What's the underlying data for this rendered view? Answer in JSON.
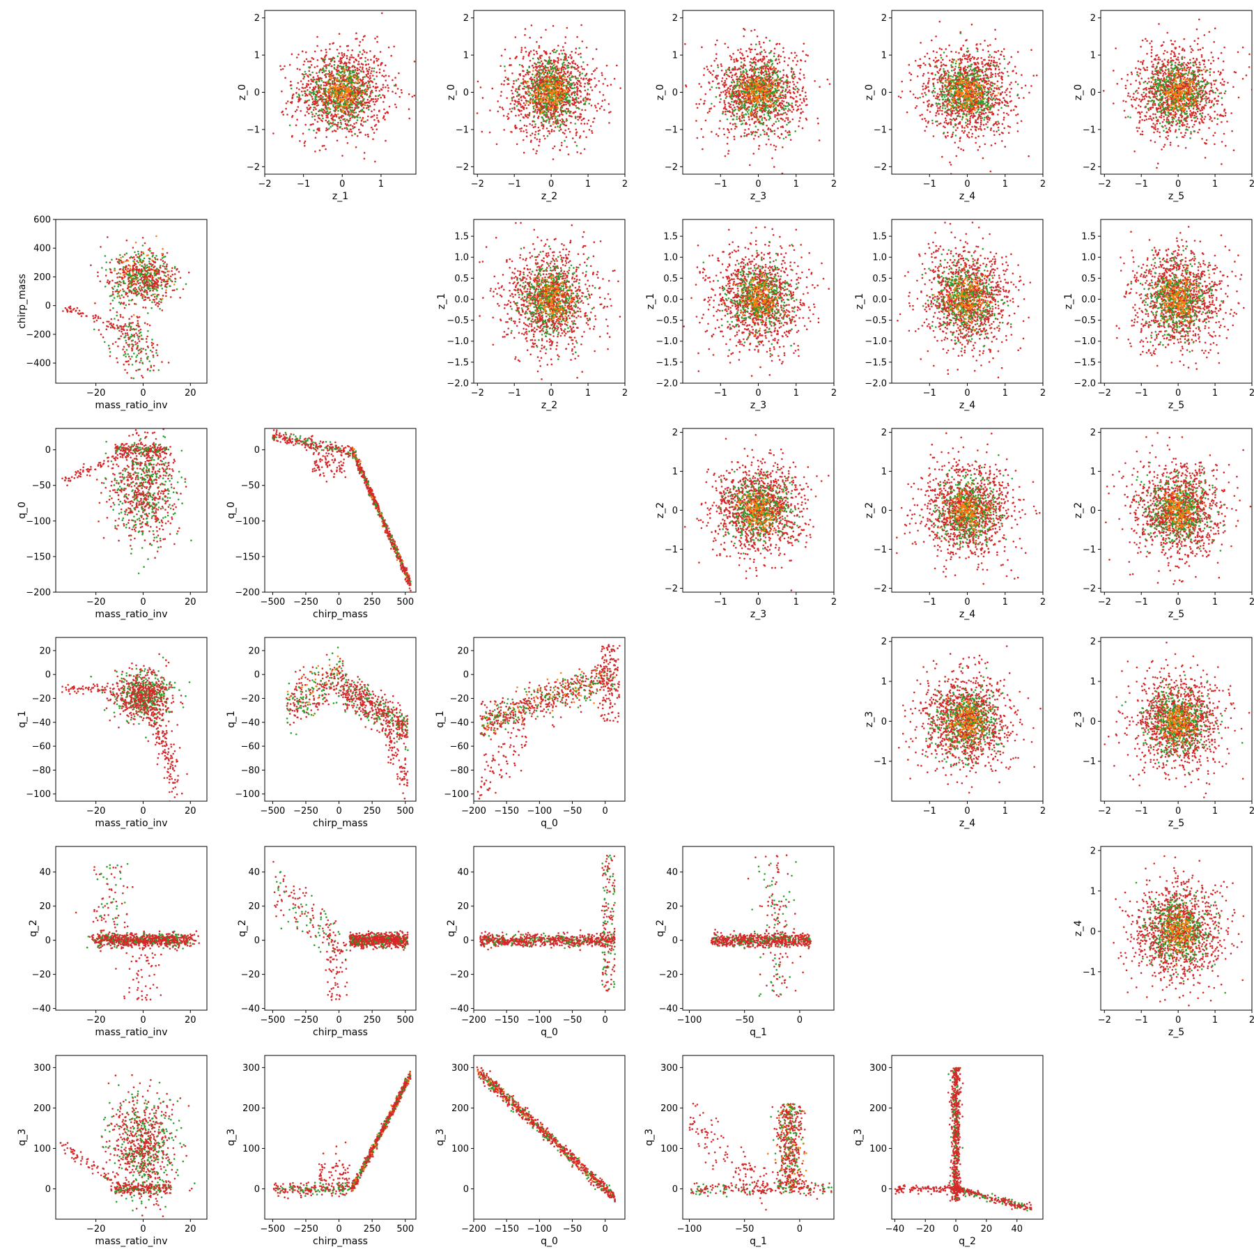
{
  "chart_data": {
    "type": "scatter",
    "colors": {
      "series_a": "#d62728",
      "series_b": "#2ca02c",
      "series_c": "#ff7f0e"
    },
    "grid": false,
    "legend": "none",
    "panels": [
      {
        "xlabel": "z_1",
        "ylabel": "z_0",
        "xlim": [
          -2.0,
          1.9
        ],
        "ylim": [
          -2.2,
          2.2
        ],
        "xticks": [
          -2,
          -1,
          0,
          1
        ],
        "yticks": [
          -2,
          -1,
          0,
          1,
          2
        ],
        "shape": "blob"
      },
      {
        "xlabel": "z_2",
        "ylabel": "z_0",
        "xlim": [
          -2.1,
          2.0
        ],
        "ylim": [
          -2.2,
          2.2
        ],
        "xticks": [
          -2,
          -1,
          0,
          1,
          2
        ],
        "yticks": [
          -2,
          -1,
          0,
          1,
          2
        ],
        "shape": "blob"
      },
      {
        "xlabel": "z_3",
        "ylabel": "z_0",
        "xlim": [
          -2.0,
          2.0
        ],
        "ylim": [
          -2.2,
          2.2
        ],
        "xticks": [
          -1,
          0,
          1,
          2
        ],
        "yticks": [
          -2,
          -1,
          0,
          1,
          2
        ],
        "shape": "blob"
      },
      {
        "xlabel": "z_4",
        "ylabel": "z_0",
        "xlim": [
          -2.0,
          2.0
        ],
        "ylim": [
          -2.2,
          2.2
        ],
        "xticks": [
          -1,
          0,
          1,
          2
        ],
        "yticks": [
          -2,
          -1,
          0,
          1,
          2
        ],
        "shape": "blob"
      },
      {
        "xlabel": "z_5",
        "ylabel": "z_0",
        "xlim": [
          -2.1,
          2.0
        ],
        "ylim": [
          -2.2,
          2.2
        ],
        "xticks": [
          -2,
          -1,
          0,
          1,
          2
        ],
        "yticks": [
          -2,
          -1,
          0,
          1,
          2
        ],
        "shape": "blob"
      },
      {
        "xlabel": "mass_ratio_inv",
        "ylabel": "chirp_mass",
        "xlim": [
          -37,
          27
        ],
        "ylim": [
          -540,
          600
        ],
        "xticks": [
          -20,
          0,
          20
        ],
        "yticks": [
          -400,
          -200,
          0,
          200,
          400,
          600
        ],
        "shape": "mri_cm"
      },
      {
        "xlabel": "z_2",
        "ylabel": "z_1",
        "xlim": [
          -2.1,
          2.0
        ],
        "ylim": [
          -2.0,
          1.9
        ],
        "xticks": [
          -2,
          -1,
          0,
          1,
          2
        ],
        "yticks": [
          -2.0,
          -1.5,
          -1.0,
          -0.5,
          0.0,
          0.5,
          1.0,
          1.5
        ],
        "ytick_labels": [
          "−2.0",
          "−1.5",
          "−1.0",
          "−0.5",
          "0.0",
          "0.5",
          "1.0",
          "1.5"
        ],
        "shape": "blob"
      },
      {
        "xlabel": "z_3",
        "ylabel": "z_1",
        "xlim": [
          -2.0,
          2.0
        ],
        "ylim": [
          -2.0,
          1.9
        ],
        "xticks": [
          -1,
          0,
          1,
          2
        ],
        "yticks": [
          -2.0,
          -1.5,
          -1.0,
          -0.5,
          0.0,
          0.5,
          1.0,
          1.5
        ],
        "ytick_labels": [
          "−2.0",
          "−1.5",
          "−1.0",
          "−0.5",
          "0.0",
          "0.5",
          "1.0",
          "1.5"
        ],
        "shape": "blob"
      },
      {
        "xlabel": "z_4",
        "ylabel": "z_1",
        "xlim": [
          -2.0,
          2.0
        ],
        "ylim": [
          -2.0,
          1.9
        ],
        "xticks": [
          -1,
          0,
          1,
          2
        ],
        "yticks": [
          -2.0,
          -1.5,
          -1.0,
          -0.5,
          0.0,
          0.5,
          1.0,
          1.5
        ],
        "ytick_labels": [
          "−2.0",
          "−1.5",
          "−1.0",
          "−0.5",
          "0.0",
          "0.5",
          "1.0",
          "1.5"
        ],
        "shape": "blob"
      },
      {
        "xlabel": "z_5",
        "ylabel": "z_1",
        "xlim": [
          -2.1,
          2.0
        ],
        "ylim": [
          -2.0,
          1.9
        ],
        "xticks": [
          -2,
          -1,
          0,
          1,
          2
        ],
        "yticks": [
          -2.0,
          -1.5,
          -1.0,
          -0.5,
          0.0,
          0.5,
          1.0,
          1.5
        ],
        "ytick_labels": [
          "−2.0",
          "−1.5",
          "−1.0",
          "−0.5",
          "0.0",
          "0.5",
          "1.0",
          "1.5"
        ],
        "shape": "blob"
      },
      {
        "xlabel": "mass_ratio_inv",
        "ylabel": "q_0",
        "xlim": [
          -37,
          27
        ],
        "ylim": [
          -200,
          30
        ],
        "xticks": [
          -20,
          0,
          20
        ],
        "yticks": [
          -200,
          -150,
          -100,
          -50,
          0
        ],
        "shape": "mri_q0"
      },
      {
        "xlabel": "chirp_mass",
        "ylabel": "q_0",
        "xlim": [
          -560,
          580
        ],
        "ylim": [
          -200,
          30
        ],
        "xticks": [
          -500,
          -250,
          0,
          250,
          500
        ],
        "yticks": [
          -200,
          -150,
          -100,
          -50,
          0
        ],
        "shape": "cm_q0"
      },
      {
        "xlabel": "z_3",
        "ylabel": "z_2",
        "xlim": [
          -2.0,
          2.0
        ],
        "ylim": [
          -2.1,
          2.1
        ],
        "xticks": [
          -1,
          0,
          1,
          2
        ],
        "yticks": [
          -2,
          -1,
          0,
          1,
          2
        ],
        "shape": "blob"
      },
      {
        "xlabel": "z_4",
        "ylabel": "z_2",
        "xlim": [
          -2.0,
          2.0
        ],
        "ylim": [
          -2.1,
          2.1
        ],
        "xticks": [
          -1,
          0,
          1,
          2
        ],
        "yticks": [
          -2,
          -1,
          0,
          1,
          2
        ],
        "shape": "blob"
      },
      {
        "xlabel": "z_5",
        "ylabel": "z_2",
        "xlim": [
          -2.1,
          2.0
        ],
        "ylim": [
          -2.1,
          2.1
        ],
        "xticks": [
          -2,
          -1,
          0,
          1,
          2
        ],
        "yticks": [
          -2,
          -1,
          0,
          1,
          2
        ],
        "shape": "blob"
      },
      {
        "xlabel": "mass_ratio_inv",
        "ylabel": "q_1",
        "xlim": [
          -37,
          27
        ],
        "ylim": [
          -106,
          31
        ],
        "xticks": [
          -20,
          0,
          20
        ],
        "yticks": [
          -100,
          -80,
          -60,
          -40,
          -20,
          0,
          20
        ],
        "shape": "mri_q1"
      },
      {
        "xlabel": "chirp_mass",
        "ylabel": "q_1",
        "xlim": [
          -560,
          580
        ],
        "ylim": [
          -106,
          31
        ],
        "xticks": [
          -500,
          -250,
          0,
          250,
          500
        ],
        "yticks": [
          -100,
          -80,
          -60,
          -40,
          -20,
          0,
          20
        ],
        "shape": "cm_q1"
      },
      {
        "xlabel": "q_0",
        "ylabel": "q_1",
        "xlim": [
          -200,
          30
        ],
        "ylim": [
          -106,
          31
        ],
        "xticks": [
          -200,
          -150,
          -100,
          -50,
          0
        ],
        "yticks": [
          -100,
          -80,
          -60,
          -40,
          -20,
          0,
          20
        ],
        "shape": "q0_q1"
      },
      {
        "xlabel": "z_4",
        "ylabel": "z_3",
        "xlim": [
          -2.0,
          2.0
        ],
        "ylim": [
          -2.0,
          2.1
        ],
        "xticks": [
          -1,
          0,
          1,
          2
        ],
        "yticks": [
          -1,
          0,
          1,
          2
        ],
        "shape": "blob"
      },
      {
        "xlabel": "z_5",
        "ylabel": "z_3",
        "xlim": [
          -2.1,
          2.0
        ],
        "ylim": [
          -2.0,
          2.1
        ],
        "xticks": [
          -2,
          -1,
          0,
          1,
          2
        ],
        "yticks": [
          -1,
          0,
          1,
          2
        ],
        "shape": "blob"
      },
      {
        "xlabel": "mass_ratio_inv",
        "ylabel": "q_2",
        "xlim": [
          -37,
          27
        ],
        "ylim": [
          -41,
          55
        ],
        "xticks": [
          -20,
          0,
          20
        ],
        "yticks": [
          -40,
          -20,
          0,
          20,
          40
        ],
        "shape": "mri_q2"
      },
      {
        "xlabel": "chirp_mass",
        "ylabel": "q_2",
        "xlim": [
          -560,
          580
        ],
        "ylim": [
          -41,
          55
        ],
        "xticks": [
          -500,
          -250,
          0,
          250,
          500
        ],
        "yticks": [
          -40,
          -20,
          0,
          20,
          40
        ],
        "shape": "cm_q2"
      },
      {
        "xlabel": "q_0",
        "ylabel": "q_2",
        "xlim": [
          -200,
          30
        ],
        "ylim": [
          -41,
          55
        ],
        "xticks": [
          -200,
          -150,
          -100,
          -50,
          0
        ],
        "yticks": [
          -40,
          -20,
          0,
          20,
          40
        ],
        "shape": "q0_q2"
      },
      {
        "xlabel": "q_1",
        "ylabel": "q_2",
        "xlim": [
          -106,
          31
        ],
        "ylim": [
          -41,
          55
        ],
        "xticks": [
          -100,
          -50,
          0
        ],
        "yticks": [
          -40,
          -20,
          0,
          20,
          40
        ],
        "shape": "q1_q2"
      },
      {
        "xlabel": "z_5",
        "ylabel": "z_4",
        "xlim": [
          -2.1,
          2.0
        ],
        "ylim": [
          -1.95,
          2.1
        ],
        "xticks": [
          -2,
          -1,
          0,
          1,
          2
        ],
        "yticks": [
          -1,
          0,
          1,
          2
        ],
        "shape": "blob"
      },
      {
        "xlabel": "mass_ratio_inv",
        "ylabel": "q_3",
        "xlim": [
          -37,
          27
        ],
        "ylim": [
          -75,
          330
        ],
        "xticks": [
          -20,
          0,
          20
        ],
        "yticks": [
          0,
          100,
          200,
          300
        ],
        "shape": "mri_q3"
      },
      {
        "xlabel": "chirp_mass",
        "ylabel": "q_3",
        "xlim": [
          -560,
          580
        ],
        "ylim": [
          -75,
          330
        ],
        "xticks": [
          -500,
          -250,
          0,
          250,
          500
        ],
        "yticks": [
          0,
          100,
          200,
          300
        ],
        "shape": "cm_q3"
      },
      {
        "xlabel": "q_0",
        "ylabel": "q_3",
        "xlim": [
          -200,
          30
        ],
        "ylim": [
          -75,
          330
        ],
        "xticks": [
          -200,
          -150,
          -100,
          -50,
          0
        ],
        "yticks": [
          0,
          100,
          200,
          300
        ],
        "shape": "q0_q3"
      },
      {
        "xlabel": "q_1",
        "ylabel": "q_3",
        "xlim": [
          -106,
          31
        ],
        "ylim": [
          -75,
          330
        ],
        "xticks": [
          -100,
          -50,
          0
        ],
        "yticks": [
          0,
          100,
          200,
          300
        ],
        "shape": "q1_q3"
      },
      {
        "xlabel": "q_2",
        "ylabel": "q_3",
        "xlim": [
          -42,
          57
        ],
        "ylim": [
          -75,
          330
        ],
        "xticks": [
          -40,
          -20,
          0,
          20,
          40
        ],
        "yticks": [
          0,
          100,
          200,
          300
        ],
        "shape": "q2_q3"
      }
    ]
  }
}
